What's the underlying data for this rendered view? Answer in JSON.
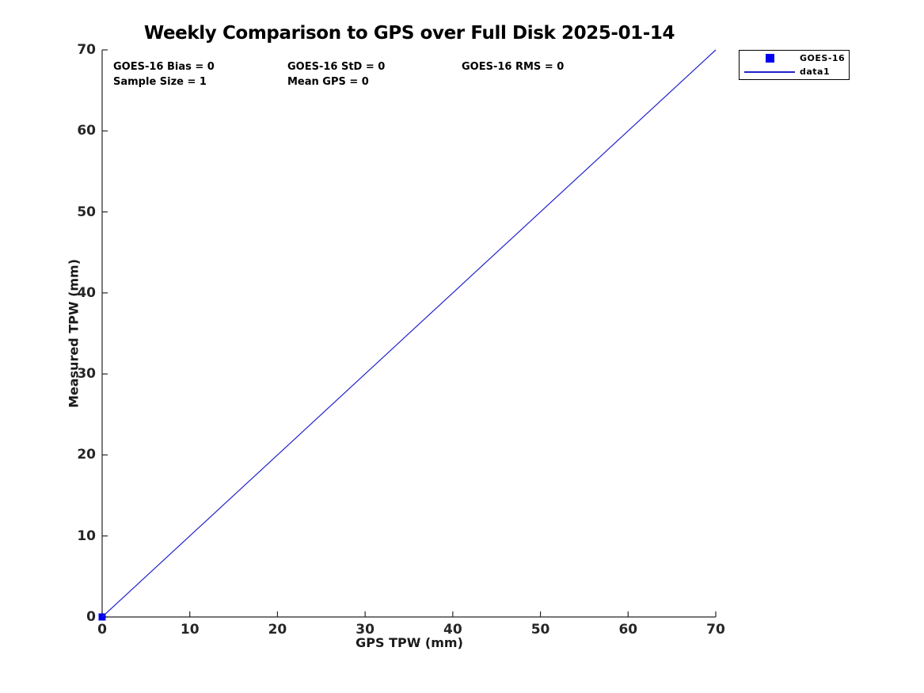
{
  "figure": {
    "background": "#FFFFFF"
  },
  "annotations": {
    "bias": "GOES-16 Bias = 0",
    "std": "GOES-16 StD = 0",
    "rms": "GOES-16 RMS = 0",
    "sample_size": "Sample Size = 1",
    "mean_gps": "Mean GPS = 0"
  },
  "legend": {
    "entries": [
      {
        "label": "GOES-16",
        "swatch": "square-marker",
        "color": "#0000EE"
      },
      {
        "label": "data1",
        "swatch": "line",
        "color": "#2222CC"
      }
    ]
  },
  "chart_data": {
    "type": "line",
    "title": "Weekly Comparison to GPS over Full Disk 2025-01-14",
    "xlabel": "GPS TPW (mm)",
    "ylabel": "Measured TPW (mm)",
    "xlim": [
      0,
      70
    ],
    "ylim": [
      0,
      70
    ],
    "xticks": [
      0,
      10,
      20,
      30,
      40,
      50,
      60,
      70
    ],
    "yticks": [
      0,
      10,
      20,
      30,
      40,
      50,
      60,
      70
    ],
    "grid": false,
    "box": false,
    "legend_position": "outside-top-right",
    "series": [
      {
        "name": "GOES-16",
        "type": "scatter",
        "marker": "square",
        "color": "#0000EE",
        "x": [
          0
        ],
        "y": [
          0
        ]
      },
      {
        "name": "data1",
        "type": "line",
        "color": "#2222CC",
        "x": [
          0,
          70
        ],
        "y": [
          0,
          70
        ]
      }
    ],
    "colors": {
      "axis": "#262626",
      "text": "#000000",
      "blue": "#0000EE"
    }
  }
}
